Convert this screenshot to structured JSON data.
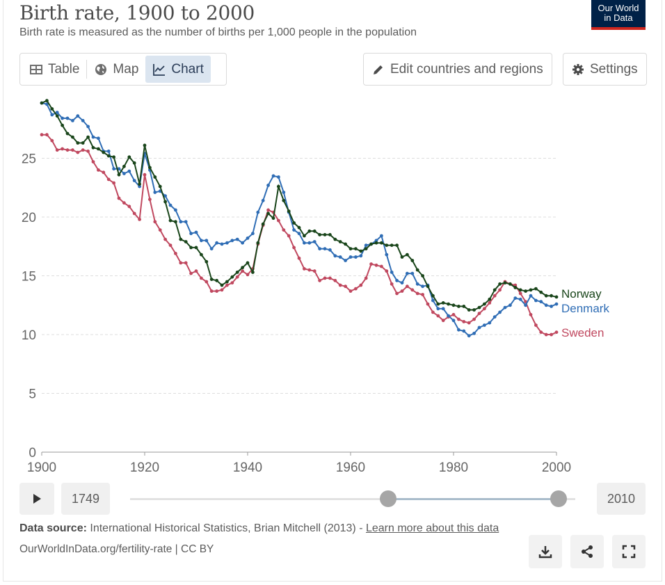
{
  "header": {
    "title": "Birth rate, 1900 to 2000",
    "subtitle": "Birth rate is measured as the number of births per 1,000 people in the population",
    "logo_line1": "Our World",
    "logo_line2": "in Data"
  },
  "tabs": [
    {
      "label": "Table",
      "icon": "table-icon"
    },
    {
      "label": "Map",
      "icon": "globe-icon"
    },
    {
      "label": "Chart",
      "icon": "line-chart-icon",
      "active": true
    }
  ],
  "toolbar": {
    "edit_label": "Edit countries and regions",
    "settings_label": "Settings"
  },
  "timeline": {
    "start_year": "1749",
    "end_year": "2010",
    "range_start": 1900,
    "range_end": 2000
  },
  "footer": {
    "source_label": "Data source:",
    "source_text": "International Historical Statistics, Brian Mitchell (2013) -",
    "learn_more": "Learn more about this data",
    "url": "OurWorldInData.org/fertility-rate | CC BY"
  },
  "colors": {
    "norway": "#19451a",
    "denmark": "#2f6db5",
    "sweden": "#c0485f",
    "accent": "#002147"
  },
  "chart_data": {
    "type": "line",
    "title": "Birth rate, 1900 to 2000",
    "xlabel": "",
    "ylabel": "",
    "xlim": [
      1900,
      2000
    ],
    "ylim": [
      0,
      30
    ],
    "xticks": [
      1900,
      1920,
      1940,
      1960,
      1980,
      2000
    ],
    "yticks": [
      0,
      5,
      10,
      15,
      20,
      25
    ],
    "grid": "horizontal dashed",
    "legend": "right end labels",
    "series": [
      {
        "name": "Norway",
        "points": [
          [
            1900,
            29.7
          ],
          [
            1901,
            29.9
          ],
          [
            1902,
            29.2
          ],
          [
            1903,
            28.6
          ],
          [
            1904,
            27.8
          ],
          [
            1905,
            27.1
          ],
          [
            1906,
            26.8
          ],
          [
            1907,
            26.3
          ],
          [
            1908,
            26.3
          ],
          [
            1909,
            26.8
          ],
          [
            1910,
            25.9
          ],
          [
            1911,
            25.8
          ],
          [
            1912,
            25.5
          ],
          [
            1913,
            25.2
          ],
          [
            1914,
            25.1
          ],
          [
            1915,
            23.6
          ],
          [
            1916,
            24.3
          ],
          [
            1917,
            25.1
          ],
          [
            1918,
            24.6
          ],
          [
            1919,
            22.8
          ],
          [
            1920,
            26.1
          ],
          [
            1921,
            24.2
          ],
          [
            1922,
            23.4
          ],
          [
            1923,
            22.6
          ],
          [
            1924,
            21.3
          ],
          [
            1925,
            19.7
          ],
          [
            1926,
            19.6
          ],
          [
            1927,
            18.1
          ],
          [
            1928,
            17.9
          ],
          [
            1929,
            17.4
          ],
          [
            1930,
            17.4
          ],
          [
            1931,
            16.8
          ],
          [
            1932,
            16.2
          ],
          [
            1933,
            14.7
          ],
          [
            1934,
            14.6
          ],
          [
            1935,
            14.2
          ],
          [
            1936,
            14.5
          ],
          [
            1937,
            14.9
          ],
          [
            1938,
            15.3
          ],
          [
            1939,
            15.7
          ],
          [
            1940,
            16.1
          ],
          [
            1941,
            15.3
          ],
          [
            1942,
            17.8
          ],
          [
            1943,
            19.4
          ],
          [
            1944,
            20.3
          ],
          [
            1945,
            19.9
          ],
          [
            1946,
            22.6
          ],
          [
            1947,
            21.4
          ],
          [
            1948,
            20.5
          ],
          [
            1949,
            19.5
          ],
          [
            1950,
            19.1
          ],
          [
            1951,
            18.4
          ],
          [
            1952,
            18.8
          ],
          [
            1953,
            18.8
          ],
          [
            1954,
            18.5
          ],
          [
            1955,
            18.5
          ],
          [
            1956,
            18.5
          ],
          [
            1957,
            18.1
          ],
          [
            1958,
            17.9
          ],
          [
            1959,
            17.7
          ],
          [
            1960,
            17.3
          ],
          [
            1961,
            17.3
          ],
          [
            1962,
            17.1
          ],
          [
            1963,
            17.3
          ],
          [
            1964,
            17.7
          ],
          [
            1965,
            17.8
          ],
          [
            1966,
            17.8
          ],
          [
            1967,
            17.6
          ],
          [
            1968,
            17.6
          ],
          [
            1969,
            17.6
          ],
          [
            1970,
            16.6
          ],
          [
            1971,
            16.8
          ],
          [
            1972,
            16.3
          ],
          [
            1973,
            15.5
          ],
          [
            1974,
            15.0
          ],
          [
            1975,
            14.1
          ],
          [
            1976,
            13.3
          ],
          [
            1977,
            12.6
          ],
          [
            1978,
            12.7
          ],
          [
            1979,
            12.6
          ],
          [
            1980,
            12.5
          ],
          [
            1981,
            12.4
          ],
          [
            1982,
            12.4
          ],
          [
            1983,
            12.1
          ],
          [
            1984,
            12.1
          ],
          [
            1985,
            12.3
          ],
          [
            1986,
            12.6
          ],
          [
            1987,
            13.0
          ],
          [
            1988,
            13.8
          ],
          [
            1989,
            14.3
          ],
          [
            1990,
            14.4
          ],
          [
            1991,
            14.3
          ],
          [
            1992,
            14.0
          ],
          [
            1993,
            13.8
          ],
          [
            1994,
            13.7
          ],
          [
            1995,
            13.8
          ],
          [
            1996,
            13.9
          ],
          [
            1997,
            13.6
          ],
          [
            1998,
            13.3
          ],
          [
            1999,
            13.3
          ],
          [
            2000,
            13.2
          ]
        ]
      },
      {
        "name": "Denmark",
        "points": [
          [
            1900,
            29.7
          ],
          [
            1901,
            29.6
          ],
          [
            1902,
            28.7
          ],
          [
            1903,
            28.9
          ],
          [
            1904,
            28.4
          ],
          [
            1905,
            28.4
          ],
          [
            1906,
            28.2
          ],
          [
            1907,
            28.6
          ],
          [
            1908,
            28.2
          ],
          [
            1909,
            27.7
          ],
          [
            1910,
            26.8
          ],
          [
            1911,
            26.7
          ],
          [
            1912,
            25.6
          ],
          [
            1913,
            25.6
          ],
          [
            1914,
            24.1
          ],
          [
            1915,
            24.1
          ],
          [
            1916,
            23.7
          ],
          [
            1917,
            23.9
          ],
          [
            1918,
            23.1
          ],
          [
            1919,
            22.6
          ],
          [
            1920,
            25.4
          ],
          [
            1921,
            24.0
          ],
          [
            1922,
            22.1
          ],
          [
            1923,
            22.2
          ],
          [
            1924,
            21.8
          ],
          [
            1925,
            21.0
          ],
          [
            1926,
            20.6
          ],
          [
            1927,
            19.6
          ],
          [
            1928,
            19.6
          ],
          [
            1929,
            18.6
          ],
          [
            1930,
            18.7
          ],
          [
            1931,
            18.0
          ],
          [
            1932,
            18.0
          ],
          [
            1933,
            17.3
          ],
          [
            1934,
            17.8
          ],
          [
            1935,
            17.7
          ],
          [
            1936,
            17.8
          ],
          [
            1937,
            18.0
          ],
          [
            1938,
            18.1
          ],
          [
            1939,
            17.8
          ],
          [
            1940,
            18.2
          ],
          [
            1941,
            18.6
          ],
          [
            1942,
            20.4
          ],
          [
            1943,
            21.4
          ],
          [
            1944,
            22.7
          ],
          [
            1945,
            23.5
          ],
          [
            1946,
            23.4
          ],
          [
            1947,
            22.1
          ],
          [
            1948,
            20.4
          ],
          [
            1949,
            18.9
          ],
          [
            1950,
            18.6
          ],
          [
            1951,
            17.8
          ],
          [
            1952,
            17.8
          ],
          [
            1953,
            17.9
          ],
          [
            1954,
            17.3
          ],
          [
            1955,
            17.3
          ],
          [
            1956,
            17.2
          ],
          [
            1957,
            16.7
          ],
          [
            1958,
            16.6
          ],
          [
            1959,
            16.3
          ],
          [
            1960,
            16.6
          ],
          [
            1961,
            16.6
          ],
          [
            1962,
            16.7
          ],
          [
            1963,
            17.6
          ],
          [
            1964,
            17.7
          ],
          [
            1965,
            18.0
          ],
          [
            1966,
            18.4
          ],
          [
            1967,
            16.8
          ],
          [
            1968,
            15.3
          ],
          [
            1969,
            14.6
          ],
          [
            1970,
            14.4
          ],
          [
            1971,
            15.2
          ],
          [
            1972,
            15.2
          ],
          [
            1973,
            14.3
          ],
          [
            1974,
            14.1
          ],
          [
            1975,
            14.2
          ],
          [
            1976,
            12.9
          ],
          [
            1977,
            12.2
          ],
          [
            1978,
            12.2
          ],
          [
            1979,
            11.6
          ],
          [
            1980,
            11.2
          ],
          [
            1981,
            10.4
          ],
          [
            1982,
            10.3
          ],
          [
            1983,
            9.9
          ],
          [
            1984,
            10.1
          ],
          [
            1985,
            10.6
          ],
          [
            1986,
            10.8
          ],
          [
            1987,
            11.0
          ],
          [
            1988,
            11.5
          ],
          [
            1989,
            11.9
          ],
          [
            1990,
            12.3
          ],
          [
            1991,
            12.5
          ],
          [
            1992,
            13.1
          ],
          [
            1993,
            13.0
          ],
          [
            1994,
            12.5
          ],
          [
            1995,
            13.3
          ],
          [
            1996,
            12.9
          ],
          [
            1997,
            12.8
          ],
          [
            1998,
            12.5
          ],
          [
            1999,
            12.4
          ],
          [
            2000,
            12.6
          ]
        ]
      },
      {
        "name": "Sweden",
        "points": [
          [
            1900,
            27.0
          ],
          [
            1901,
            27.0
          ],
          [
            1902,
            26.5
          ],
          [
            1903,
            25.7
          ],
          [
            1904,
            25.8
          ],
          [
            1905,
            25.7
          ],
          [
            1906,
            25.7
          ],
          [
            1907,
            25.5
          ],
          [
            1908,
            25.7
          ],
          [
            1909,
            25.6
          ],
          [
            1910,
            24.7
          ],
          [
            1911,
            24.0
          ],
          [
            1912,
            23.8
          ],
          [
            1913,
            23.2
          ],
          [
            1914,
            22.9
          ],
          [
            1915,
            21.6
          ],
          [
            1916,
            21.2
          ],
          [
            1917,
            20.9
          ],
          [
            1918,
            20.3
          ],
          [
            1919,
            19.8
          ],
          [
            1920,
            23.6
          ],
          [
            1921,
            21.5
          ],
          [
            1922,
            19.6
          ],
          [
            1923,
            18.9
          ],
          [
            1924,
            18.1
          ],
          [
            1925,
            17.6
          ],
          [
            1926,
            16.9
          ],
          [
            1927,
            16.1
          ],
          [
            1928,
            16.1
          ],
          [
            1929,
            15.2
          ],
          [
            1930,
            15.4
          ],
          [
            1931,
            14.8
          ],
          [
            1932,
            14.5
          ],
          [
            1933,
            13.7
          ],
          [
            1934,
            13.7
          ],
          [
            1935,
            13.8
          ],
          [
            1936,
            14.2
          ],
          [
            1937,
            14.4
          ],
          [
            1938,
            14.9
          ],
          [
            1939,
            15.4
          ],
          [
            1940,
            15.1
          ],
          [
            1941,
            15.6
          ],
          [
            1942,
            17.7
          ],
          [
            1943,
            19.3
          ],
          [
            1944,
            20.6
          ],
          [
            1945,
            20.4
          ],
          [
            1946,
            19.7
          ],
          [
            1947,
            18.9
          ],
          [
            1948,
            18.4
          ],
          [
            1949,
            17.4
          ],
          [
            1950,
            16.5
          ],
          [
            1951,
            15.6
          ],
          [
            1952,
            15.5
          ],
          [
            1953,
            15.4
          ],
          [
            1954,
            14.6
          ],
          [
            1955,
            14.8
          ],
          [
            1956,
            14.8
          ],
          [
            1957,
            14.6
          ],
          [
            1958,
            14.2
          ],
          [
            1959,
            14.1
          ],
          [
            1960,
            13.7
          ],
          [
            1961,
            13.9
          ],
          [
            1962,
            14.2
          ],
          [
            1963,
            14.8
          ],
          [
            1964,
            16.0
          ],
          [
            1965,
            15.9
          ],
          [
            1966,
            15.8
          ],
          [
            1967,
            15.4
          ],
          [
            1968,
            14.3
          ],
          [
            1969,
            13.5
          ],
          [
            1970,
            13.7
          ],
          [
            1971,
            14.1
          ],
          [
            1972,
            13.8
          ],
          [
            1973,
            13.5
          ],
          [
            1974,
            13.4
          ],
          [
            1975,
            12.6
          ],
          [
            1976,
            11.9
          ],
          [
            1977,
            11.6
          ],
          [
            1978,
            11.2
          ],
          [
            1979,
            11.5
          ],
          [
            1980,
            11.7
          ],
          [
            1981,
            11.3
          ],
          [
            1982,
            11.1
          ],
          [
            1983,
            11.0
          ],
          [
            1984,
            11.3
          ],
          [
            1985,
            11.8
          ],
          [
            1986,
            12.2
          ],
          [
            1987,
            12.7
          ],
          [
            1988,
            13.3
          ],
          [
            1989,
            13.8
          ],
          [
            1990,
            14.5
          ],
          [
            1991,
            14.3
          ],
          [
            1992,
            14.2
          ],
          [
            1993,
            13.5
          ],
          [
            1994,
            12.8
          ],
          [
            1995,
            11.7
          ],
          [
            1996,
            10.8
          ],
          [
            1997,
            10.2
          ],
          [
            1998,
            10.0
          ],
          [
            1999,
            10.0
          ],
          [
            2000,
            10.2
          ]
        ]
      }
    ]
  }
}
